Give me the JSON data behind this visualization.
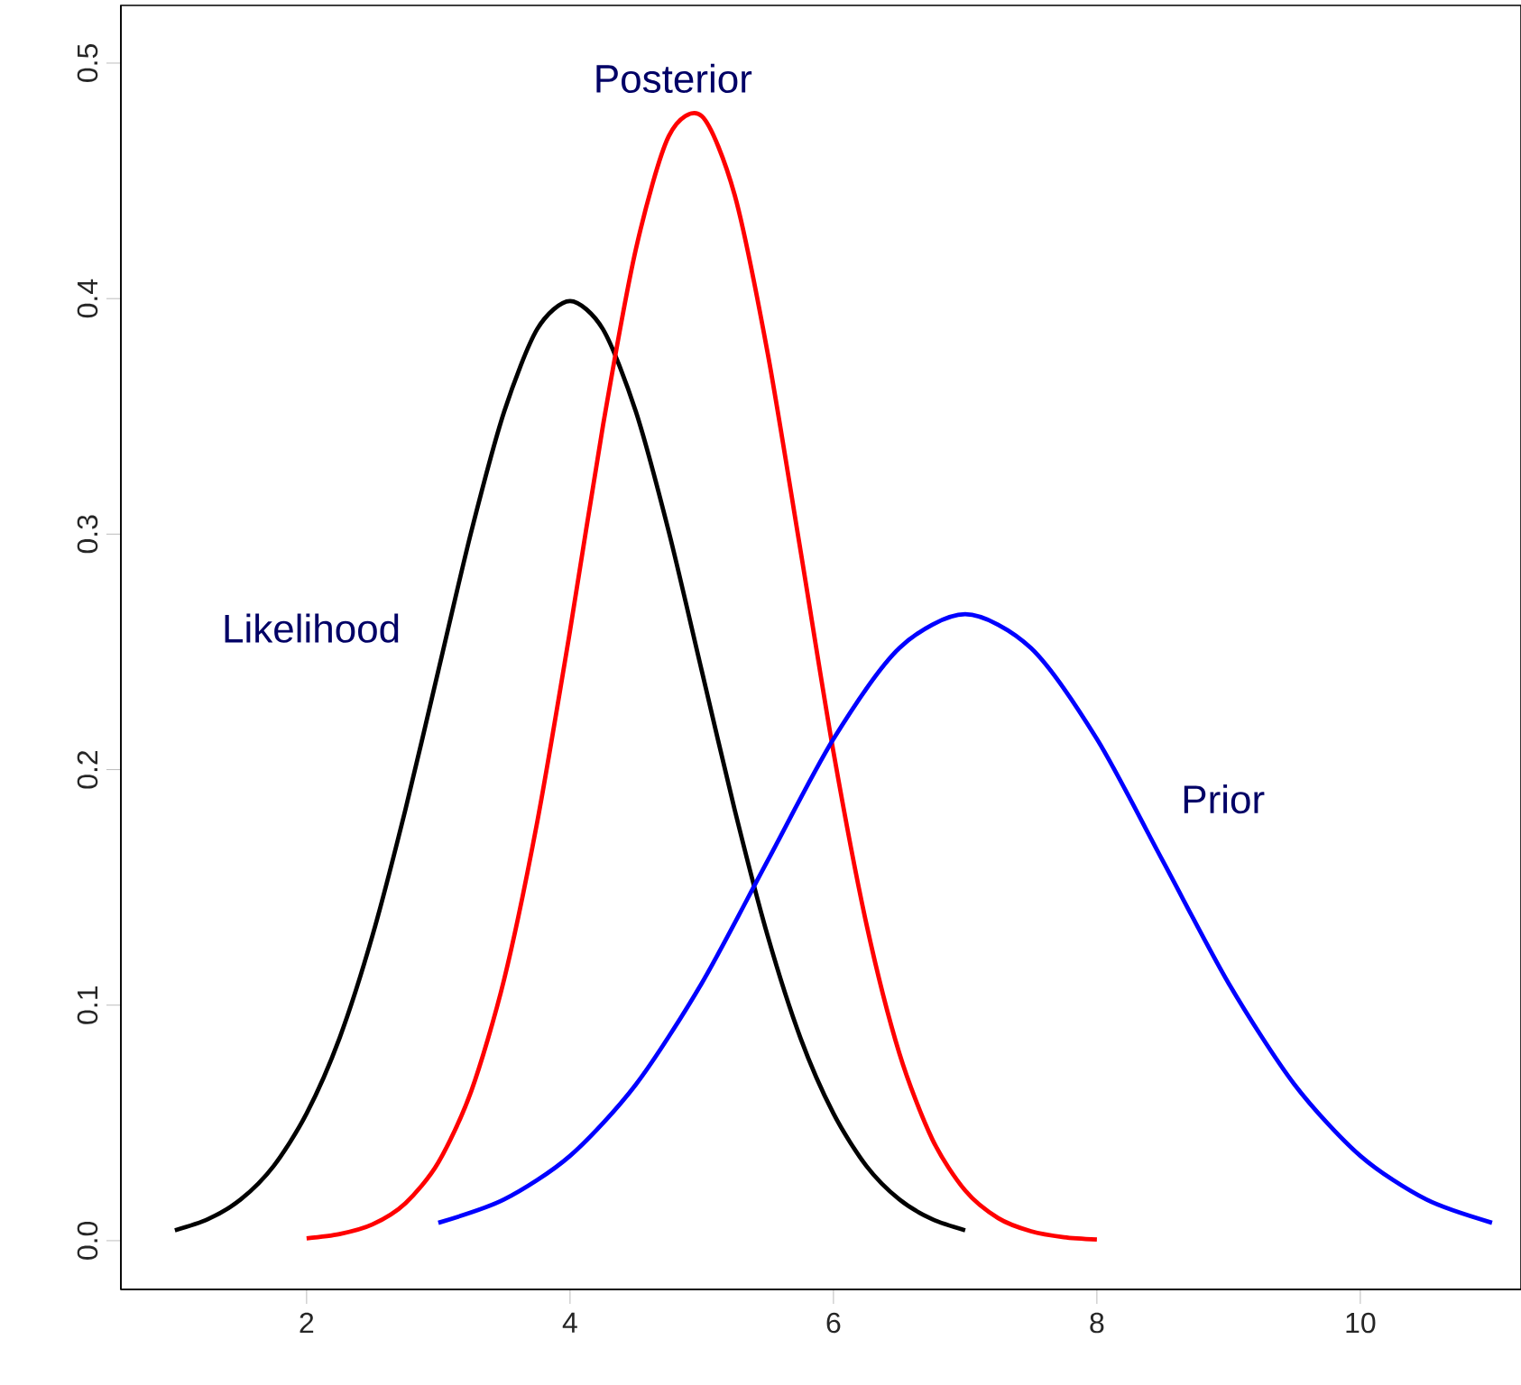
{
  "chart_data": {
    "type": "line",
    "xlim": [
      0.59,
      11.22
    ],
    "ylim": [
      -0.0207,
      0.5245
    ],
    "xticks": [
      2,
      4,
      6,
      8,
      10
    ],
    "yticks": [
      {
        "value": 0,
        "label": "0.0"
      },
      {
        "value": 0.1,
        "label": "0.1"
      },
      {
        "value": 0.2,
        "label": "0.2"
      },
      {
        "value": 0.3,
        "label": "0.3"
      },
      {
        "value": 0.4,
        "label": "0.4"
      },
      {
        "value": 0.5,
        "label": "0.5"
      }
    ],
    "grid": false,
    "marker": "none",
    "line_style": "solid",
    "series": [
      {
        "name": "Likelihood",
        "color": "#000000",
        "x": [
          1,
          1.25,
          1.5,
          1.75,
          2,
          2.25,
          2.5,
          2.75,
          3,
          3.25,
          3.5,
          3.75,
          4,
          4.25,
          4.5,
          4.75,
          5,
          5.25,
          5.5,
          5.75,
          6,
          6.25,
          6.5,
          6.75,
          7
        ],
        "values": [
          0.0044,
          0.0091,
          0.0175,
          0.0317,
          0.054,
          0.086,
          0.1295,
          0.183,
          0.242,
          0.301,
          0.352,
          0.387,
          0.399,
          0.387,
          0.352,
          0.301,
          0.242,
          0.183,
          0.1295,
          0.086,
          0.054,
          0.0317,
          0.0175,
          0.0091,
          0.0044
        ]
      },
      {
        "name": "Posterior",
        "color": "#ff0000",
        "x": [
          2,
          2.25,
          2.5,
          2.75,
          3,
          3.25,
          3.5,
          3.75,
          4,
          4.25,
          4.5,
          4.75,
          5,
          5.25,
          5.5,
          5.75,
          6,
          6.25,
          6.5,
          6.75,
          7,
          7.25,
          7.5,
          7.75,
          8
        ],
        "values": [
          0.001,
          0.0028,
          0.0069,
          0.0159,
          0.0332,
          0.0635,
          0.111,
          0.1775,
          0.259,
          0.346,
          0.421,
          0.469,
          0.4775,
          0.444,
          0.377,
          0.293,
          0.2075,
          0.1345,
          0.0796,
          0.0431,
          0.0213,
          0.0096,
          0.004,
          0.0015,
          0.0005
        ]
      },
      {
        "name": "Prior",
        "color": "#0000ff",
        "x": [
          3,
          3.5,
          4,
          4.5,
          5,
          5.5,
          6,
          6.5,
          7,
          7.5,
          8,
          8.5,
          9,
          9.5,
          10,
          10.5,
          11
        ],
        "values": [
          0.0076,
          0.0175,
          0.036,
          0.0663,
          0.1093,
          0.1613,
          0.213,
          0.2516,
          0.266,
          0.2516,
          0.213,
          0.1613,
          0.1093,
          0.0663,
          0.036,
          0.0175,
          0.0076
        ]
      }
    ]
  }
}
